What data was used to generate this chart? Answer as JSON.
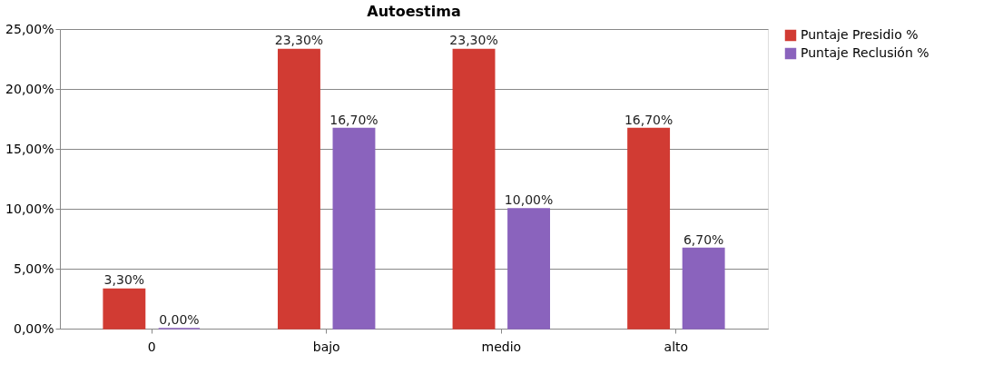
{
  "chart_data": {
    "type": "bar",
    "title": "Autoestima",
    "categories": [
      "0",
      "bajo",
      "medio",
      "alto"
    ],
    "series": [
      {
        "name": "Puntaje Presidio %",
        "color": "#d13b33",
        "values": [
          3.3,
          23.3,
          23.3,
          16.7
        ],
        "value_labels": [
          "3,30%",
          "23,30%",
          "23,30%",
          "16,70%"
        ]
      },
      {
        "name": "Puntaje Reclusión %",
        "color": "#8a63bd",
        "values": [
          0,
          16.7,
          10,
          6.7
        ],
        "value_labels": [
          "0,00%",
          "16,70%",
          "10,00%",
          "6,70%"
        ]
      }
    ],
    "ylim": [
      0,
      25
    ],
    "yticks": [
      {
        "value": 0,
        "label": "0,00%"
      },
      {
        "value": 5,
        "label": "5,00%"
      },
      {
        "value": 10,
        "label": "10,00%"
      },
      {
        "value": 15,
        "label": "15,00%"
      },
      {
        "value": 20,
        "label": "20,00%"
      },
      {
        "value": 25,
        "label": "25,00%"
      }
    ],
    "grid": "y",
    "legend": "right"
  }
}
